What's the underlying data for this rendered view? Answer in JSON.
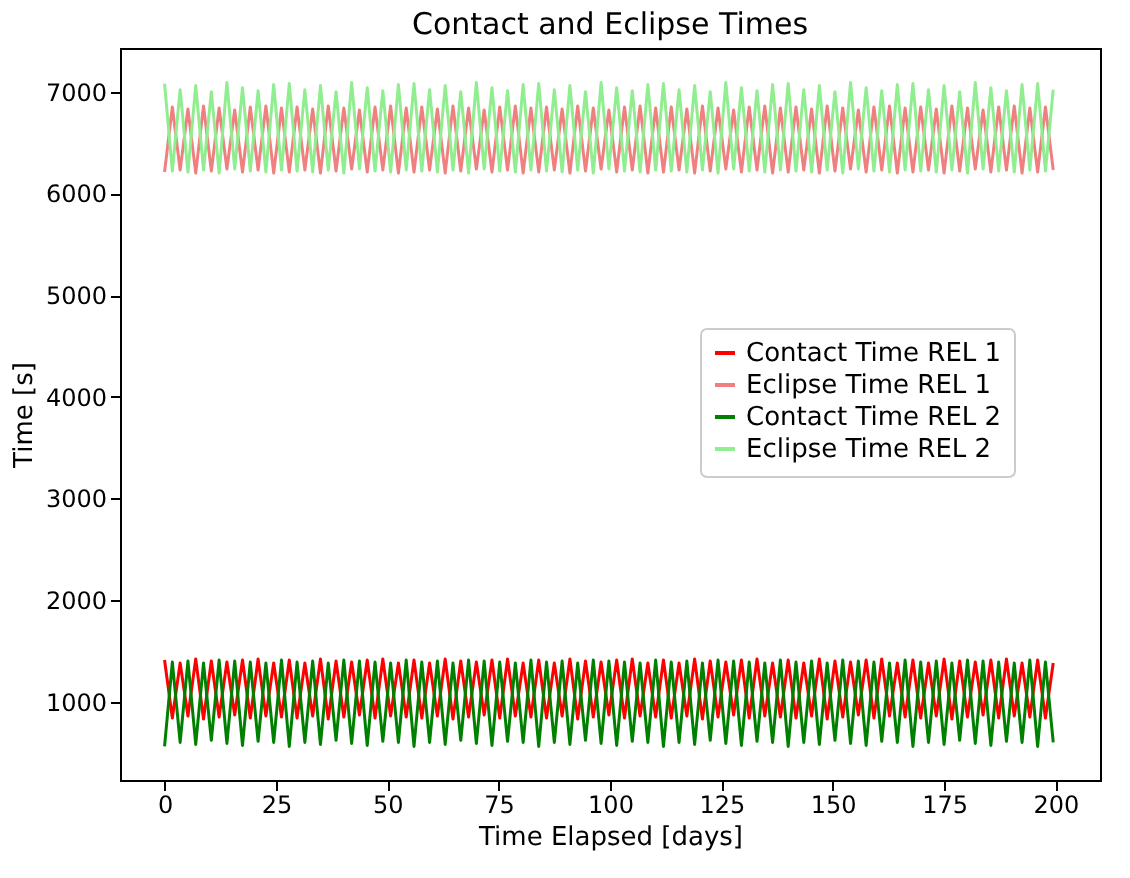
{
  "chart_data": {
    "type": "line",
    "title": "Contact and Eclipse Times",
    "xlabel": "Time Elapsed [days]",
    "ylabel": "Time [s]",
    "x": [
      0,
      1.75,
      3.5,
      5.25,
      7,
      8.75,
      10.5,
      12.25,
      14,
      15.75,
      17.5,
      19.25,
      21,
      22.75,
      24.5,
      26.25,
      28,
      29.75,
      31.5,
      33.25,
      35,
      36.75,
      38.5,
      40.25,
      42,
      43.75,
      45.5,
      47.25,
      49,
      50.75,
      52.5,
      54.25,
      56,
      57.75,
      59.5,
      61.25,
      63,
      64.75,
      66.5,
      68.25,
      70,
      71.75,
      73.5,
      75.25,
      77,
      78.75,
      80.5,
      82.25,
      84,
      85.75,
      87.5,
      89.25,
      91,
      92.75,
      94.5,
      96.25,
      98,
      99.75,
      101.5,
      103.25,
      105,
      106.75,
      108.5,
      110.25,
      112,
      113.75,
      115.5,
      117.25,
      119,
      120.75,
      122.5,
      124.25,
      126,
      127.75,
      129.5,
      131.25,
      133,
      134.75,
      136.5,
      138.25,
      140,
      141.75,
      143.5,
      145.25,
      147,
      148.75,
      150.5,
      152.25,
      154,
      155.75,
      157.5,
      159.25,
      161,
      162.75,
      164.5,
      166.25,
      168,
      169.75,
      171.5,
      173.25,
      175,
      176.75,
      178.5,
      180.25,
      182,
      183.75,
      185.5,
      187.25,
      189,
      190.75,
      192.5,
      194.25,
      196,
      197.75,
      199.5
    ],
    "series": [
      {
        "name": "Contact Time REL 1",
        "color": "#ff0000",
        "values": [
          1410,
          840,
          1380,
          860,
          1420,
          830,
          1400,
          850,
          1390,
          870,
          1410,
          840,
          1420,
          860,
          1380,
          850,
          1410,
          840,
          1380,
          860,
          1420,
          830,
          1400,
          850,
          1390,
          870,
          1410,
          840,
          1420,
          860,
          1380,
          850,
          1410,
          840,
          1380,
          860,
          1420,
          830,
          1400,
          850,
          1390,
          870,
          1410,
          840,
          1420,
          860,
          1380,
          850,
          1410,
          840,
          1380,
          860,
          1420,
          830,
          1400,
          850,
          1390,
          870,
          1410,
          840,
          1420,
          860,
          1380,
          850,
          1410,
          840,
          1380,
          860,
          1420,
          830,
          1400,
          850,
          1390,
          870,
          1410,
          840,
          1420,
          860,
          1380,
          850,
          1410,
          840,
          1380,
          860,
          1420,
          830,
          1400,
          850,
          1390,
          870,
          1410,
          840,
          1420,
          860,
          1380,
          850,
          1410,
          840,
          1380,
          860,
          1420,
          830,
          1400,
          850,
          1390,
          870,
          1410,
          840,
          1420,
          860,
          1380,
          850,
          1410,
          840,
          1380
        ]
      },
      {
        "name": "Eclipse Time REL 1",
        "color": "#f08080",
        "values": [
          6210,
          6850,
          6230,
          6830,
          6200,
          6860,
          6220,
          6840,
          6240,
          6820,
          6210,
          6850,
          6230,
          6860,
          6200,
          6840,
          6210,
          6850,
          6230,
          6830,
          6200,
          6860,
          6220,
          6840,
          6240,
          6820,
          6210,
          6850,
          6230,
          6860,
          6200,
          6840,
          6210,
          6850,
          6230,
          6830,
          6200,
          6860,
          6220,
          6840,
          6240,
          6820,
          6210,
          6850,
          6230,
          6860,
          6200,
          6840,
          6210,
          6850,
          6230,
          6830,
          6200,
          6860,
          6220,
          6840,
          6240,
          6820,
          6210,
          6850,
          6230,
          6860,
          6200,
          6840,
          6210,
          6850,
          6230,
          6830,
          6200,
          6860,
          6220,
          6840,
          6240,
          6820,
          6210,
          6850,
          6230,
          6860,
          6200,
          6840,
          6210,
          6850,
          6230,
          6830,
          6200,
          6860,
          6220,
          6840,
          6240,
          6820,
          6210,
          6850,
          6230,
          6860,
          6200,
          6840,
          6210,
          6850,
          6230,
          6830,
          6200,
          6860,
          6220,
          6840,
          6240,
          6820,
          6210,
          6850,
          6230,
          6860,
          6200,
          6840,
          6210,
          6850,
          6230
        ]
      },
      {
        "name": "Contact Time REL 2",
        "color": "#008000",
        "values": [
          560,
          1390,
          600,
          1400,
          580,
          1380,
          620,
          1410,
          590,
          1400,
          570,
          1390,
          610,
          1380,
          600,
          1410,
          560,
          1390,
          600,
          1400,
          580,
          1380,
          620,
          1410,
          590,
          1400,
          570,
          1390,
          610,
          1380,
          600,
          1410,
          560,
          1390,
          600,
          1400,
          580,
          1380,
          620,
          1410,
          590,
          1400,
          570,
          1390,
          610,
          1380,
          600,
          1410,
          560,
          1390,
          600,
          1400,
          580,
          1380,
          620,
          1410,
          590,
          1400,
          570,
          1390,
          610,
          1380,
          600,
          1410,
          560,
          1390,
          600,
          1400,
          580,
          1380,
          620,
          1410,
          590,
          1400,
          570,
          1390,
          610,
          1380,
          600,
          1410,
          560,
          1390,
          600,
          1400,
          580,
          1380,
          620,
          1410,
          590,
          1400,
          570,
          1390,
          610,
          1380,
          600,
          1410,
          560,
          1390,
          600,
          1400,
          580,
          1380,
          620,
          1410,
          590,
          1400,
          570,
          1390,
          610,
          1380,
          600,
          1410,
          560,
          1390,
          600
        ]
      },
      {
        "name": "Eclipse Time REL 2",
        "color": "#90ee90",
        "values": [
          7080,
          6220,
          7020,
          6210,
          7060,
          6230,
          7000,
          6200,
          7090,
          6240,
          7040,
          6220,
          7010,
          6210,
          7070,
          6230,
          7080,
          6220,
          7020,
          6210,
          7060,
          6230,
          7000,
          6200,
          7090,
          6240,
          7040,
          6220,
          7010,
          6210,
          7070,
          6230,
          7080,
          6220,
          7020,
          6210,
          7060,
          6230,
          7000,
          6200,
          7090,
          6240,
          7040,
          6220,
          7010,
          6210,
          7070,
          6230,
          7080,
          6220,
          7020,
          6210,
          7060,
          6230,
          7000,
          6200,
          7090,
          6240,
          7040,
          6220,
          7010,
          6210,
          7070,
          6230,
          7080,
          6220,
          7020,
          6210,
          7060,
          6230,
          7000,
          6200,
          7090,
          6240,
          7040,
          6220,
          7010,
          6210,
          7070,
          6230,
          7080,
          6220,
          7020,
          6210,
          7060,
          6230,
          7000,
          6200,
          7090,
          6240,
          7040,
          6220,
          7010,
          6210,
          7070,
          6230,
          7080,
          6220,
          7020,
          6210,
          7060,
          6230,
          7000,
          6200,
          7090,
          6240,
          7040,
          6220,
          7010,
          6210,
          7070,
          6230,
          7080,
          6220,
          7020
        ]
      }
    ],
    "xlim": [
      -10,
      210
    ],
    "xticks": [
      0,
      25,
      50,
      75,
      100,
      125,
      150,
      175,
      200
    ],
    "ylim": [
      230,
      7430
    ],
    "yticks": [
      1000,
      2000,
      3000,
      4000,
      5000,
      6000,
      7000
    ],
    "legend": "right",
    "grid": false,
    "marker": "none",
    "line_style": "solid"
  }
}
